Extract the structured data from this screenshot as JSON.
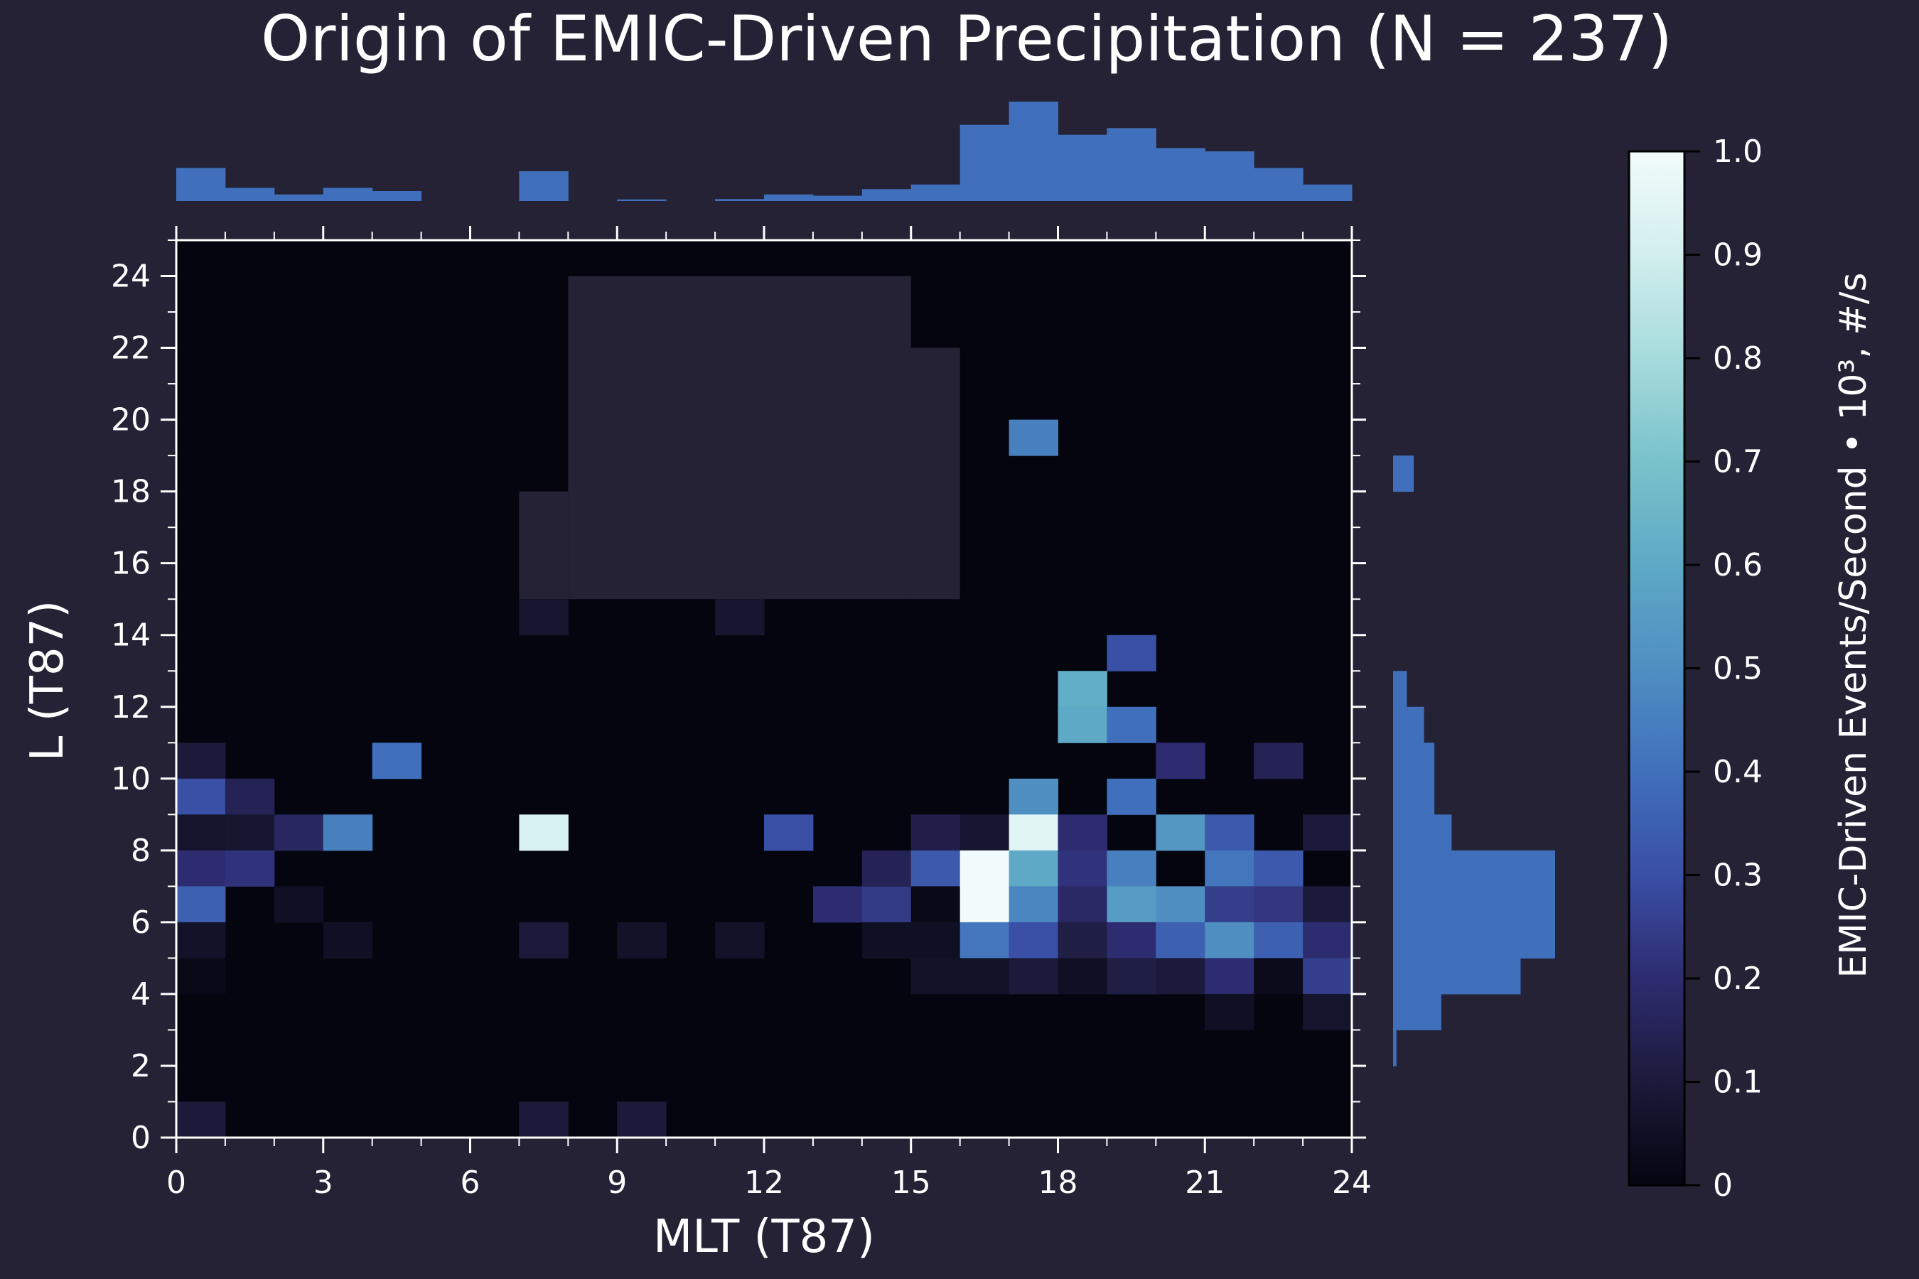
{
  "chart_data": {
    "type": "heatmap",
    "title": "Origin of EMIC-Driven Precipitation (N = 237)",
    "xlabel": "MLT (T87)",
    "ylabel": "L (T87)",
    "colorbar_label": "EMIC-Driven Events/Second • 10³, #/s",
    "xlim": [
      0,
      24
    ],
    "ylim": [
      0,
      25
    ],
    "x_ticks": [
      "0",
      "3",
      "6",
      "9",
      "12",
      "15",
      "18",
      "21",
      "24"
    ],
    "x_tick_values": [
      0,
      3,
      6,
      9,
      12,
      15,
      18,
      21,
      24
    ],
    "y_ticks": [
      "0",
      "2",
      "4",
      "6",
      "8",
      "10",
      "12",
      "14",
      "16",
      "18",
      "20",
      "22",
      "24"
    ],
    "y_tick_values": [
      0,
      2,
      4,
      6,
      8,
      10,
      12,
      14,
      16,
      18,
      20,
      22,
      24
    ],
    "colorbar_ticks": [
      "0",
      "0.1",
      "0.2",
      "0.3",
      "0.4",
      "0.5",
      "0.6",
      "0.7",
      "0.8",
      "0.9",
      "1.0"
    ],
    "colorbar_tick_values": [
      0,
      0.1,
      0.2,
      0.3,
      0.4,
      0.5,
      0.6,
      0.7,
      0.8,
      0.9,
      1.0
    ],
    "vlim": [
      0,
      1.0
    ],
    "colormap": [
      "#04050f",
      "#1b1a3a",
      "#2e2c70",
      "#3a4fa6",
      "#4070bb",
      "#4f8fc2",
      "#5ea9c6",
      "#79c2cb",
      "#a6dbdc",
      "#d2eeee",
      "#f2fbfb"
    ],
    "no_data_color": "#252236",
    "no_data_regions": [
      {
        "x": [
          8,
          15
        ],
        "y": [
          15,
          24
        ]
      },
      {
        "x": [
          7,
          8
        ],
        "y": [
          15,
          18
        ]
      },
      {
        "x": [
          15,
          16
        ],
        "y": [
          15,
          22
        ]
      }
    ],
    "cells": [
      [
        0,
        10,
        0.1
      ],
      [
        0,
        9,
        0.3
      ],
      [
        1,
        9,
        0.15
      ],
      [
        0,
        8,
        0.07
      ],
      [
        1,
        8,
        0.08
      ],
      [
        2,
        8,
        0.17
      ],
      [
        3,
        8,
        0.45
      ],
      [
        0,
        7,
        0.2
      ],
      [
        1,
        7,
        0.22
      ],
      [
        0,
        6,
        0.35
      ],
      [
        2,
        6,
        0.05
      ],
      [
        0,
        5,
        0.06
      ],
      [
        3,
        5,
        0.05
      ],
      [
        0,
        4,
        0.02
      ],
      [
        4,
        10,
        0.4
      ],
      [
        7,
        8,
        0.92
      ],
      [
        7,
        5,
        0.1
      ],
      [
        9,
        5,
        0.06
      ],
      [
        11,
        5,
        0.06
      ],
      [
        12,
        8,
        0.3
      ],
      [
        7,
        14,
        0.08
      ],
      [
        11,
        14,
        0.08
      ],
      [
        0,
        0,
        0.1
      ],
      [
        7,
        0,
        0.1
      ],
      [
        9,
        0,
        0.1
      ],
      [
        13,
        6,
        0.2
      ],
      [
        14,
        6,
        0.24
      ],
      [
        14,
        7,
        0.15
      ],
      [
        14,
        5,
        0.05
      ],
      [
        15,
        8,
        0.13
      ],
      [
        15,
        7,
        0.33
      ],
      [
        15,
        6,
        0.02
      ],
      [
        15,
        5,
        0.05
      ],
      [
        15,
        4,
        0.06
      ],
      [
        16,
        8,
        0.08
      ],
      [
        16,
        7,
        1.0
      ],
      [
        16,
        6,
        1.0
      ],
      [
        16,
        5,
        0.42
      ],
      [
        16,
        4,
        0.06
      ],
      [
        17,
        19,
        0.45
      ],
      [
        17,
        9,
        0.5
      ],
      [
        17,
        8,
        0.95
      ],
      [
        17,
        7,
        0.6
      ],
      [
        17,
        6,
        0.47
      ],
      [
        17,
        5,
        0.3
      ],
      [
        17,
        4,
        0.1
      ],
      [
        18,
        12,
        0.62
      ],
      [
        18,
        11,
        0.6
      ],
      [
        18,
        8,
        0.2
      ],
      [
        18,
        7,
        0.22
      ],
      [
        18,
        6,
        0.18
      ],
      [
        18,
        5,
        0.12
      ],
      [
        18,
        4,
        0.05
      ],
      [
        19,
        13,
        0.3
      ],
      [
        19,
        11,
        0.4
      ],
      [
        19,
        9,
        0.4
      ],
      [
        19,
        7,
        0.45
      ],
      [
        19,
        6,
        0.55
      ],
      [
        19,
        5,
        0.2
      ],
      [
        19,
        4,
        0.12
      ],
      [
        20,
        10,
        0.2
      ],
      [
        20,
        8,
        0.53
      ],
      [
        20,
        6,
        0.5
      ],
      [
        20,
        5,
        0.35
      ],
      [
        20,
        4,
        0.1
      ],
      [
        21,
        8,
        0.33
      ],
      [
        21,
        7,
        0.42
      ],
      [
        21,
        6,
        0.25
      ],
      [
        21,
        5,
        0.5
      ],
      [
        21,
        4,
        0.2
      ],
      [
        21,
        3,
        0.05
      ],
      [
        22,
        10,
        0.15
      ],
      [
        22,
        7,
        0.33
      ],
      [
        22,
        6,
        0.23
      ],
      [
        22,
        5,
        0.35
      ],
      [
        22,
        4,
        0.03
      ],
      [
        23,
        8,
        0.1
      ],
      [
        23,
        6,
        0.1
      ],
      [
        23,
        5,
        0.2
      ],
      [
        23,
        4,
        0.25
      ],
      [
        23,
        3,
        0.07
      ]
    ],
    "marginal_x": {
      "color": "#4070bb",
      "bins": [
        0,
        1,
        2,
        3,
        4,
        5,
        6,
        7,
        8,
        9,
        10,
        11,
        12,
        13,
        14,
        15,
        16,
        17,
        18,
        19,
        20,
        21,
        22,
        23
      ],
      "counts": [
        10,
        4,
        2,
        4,
        3,
        0,
        0,
        9,
        0,
        0.5,
        0,
        0.6,
        2,
        1.6,
        3.6,
        5,
        23,
        30,
        20,
        22,
        16,
        15,
        10,
        5
      ]
    },
    "marginal_y": {
      "color": "#4070bb",
      "bins": [
        2,
        3,
        4,
        5,
        6,
        7,
        8,
        9,
        10,
        11,
        12,
        18
      ],
      "counts": [
        1,
        14,
        37,
        47,
        47,
        47,
        17,
        12,
        12,
        9,
        4,
        6
      ]
    }
  }
}
